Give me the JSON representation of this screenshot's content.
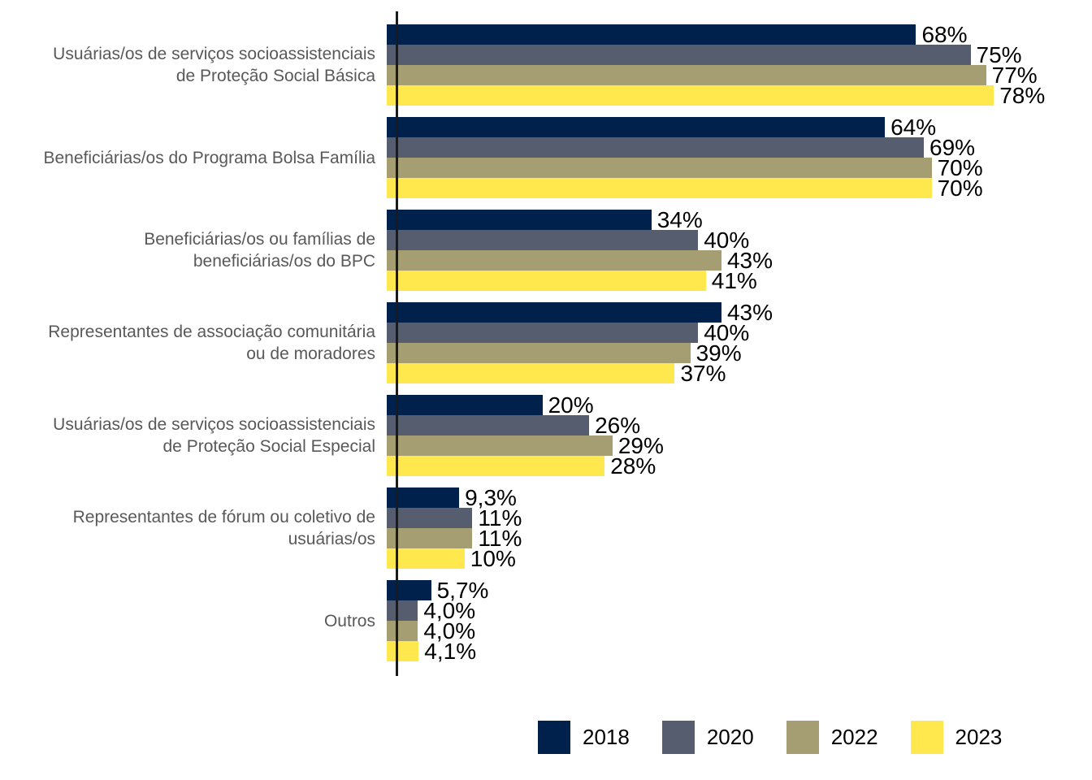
{
  "chart_data": {
    "type": "bar",
    "orientation": "horizontal",
    "unit": "%",
    "title": "",
    "xlabel": "",
    "ylabel": "",
    "xlim": [
      0,
      100
    ],
    "grid": false,
    "value_labels_shown": true,
    "legend_position": "bottom",
    "axis_color": "#1a1a1a",
    "category_label_color": "#595959",
    "value_label_color": "#000000",
    "categories": [
      "Usuárias/os de serviços socioassistenciais de Proteção Social Básica",
      "Beneficiárias/os do Programa Bolsa Família",
      "Beneficiárias/os ou famílias de beneficiárias/os do BPC",
      "Representantes de associação comunitária ou de moradores",
      "Usuárias/os de serviços socioassistenciais de Proteção Social Especial",
      "Representantes de fórum ou coletivo de usuárias/os",
      "Outros"
    ],
    "category_label_lines": [
      [
        "Usuárias/os de serviços socioassistenciais",
        "de Proteção Social Básica"
      ],
      [
        "Beneficiárias/os do Programa Bolsa Família"
      ],
      [
        "Beneficiárias/os ou famílias de",
        "beneficiárias/os do BPC"
      ],
      [
        "Representantes de associação comunitária",
        "ou de moradores"
      ],
      [
        "Usuárias/os de serviços socioassistenciais",
        "de Proteção Social Especial"
      ],
      [
        "Representantes de fórum ou coletivo de",
        "usuárias/os"
      ],
      [
        "Outros"
      ]
    ],
    "series": [
      {
        "name": "2018",
        "color": "#01214d",
        "values": [
          68,
          64,
          34,
          43,
          20,
          9.3,
          5.7
        ],
        "labels": [
          "68%",
          "64%",
          "34%",
          "43%",
          "20%",
          "9,3%",
          "5,7%"
        ]
      },
      {
        "name": "2020",
        "color": "#565d6e",
        "values": [
          75,
          69,
          40,
          40,
          26,
          11,
          4.0
        ],
        "labels": [
          "75%",
          "69%",
          "40%",
          "40%",
          "26%",
          "11%",
          "4,0%"
        ]
      },
      {
        "name": "2022",
        "color": "#a69e73",
        "values": [
          77,
          70,
          43,
          39,
          29,
          11,
          4.0
        ],
        "labels": [
          "77%",
          "70%",
          "43%",
          "39%",
          "29%",
          "11%",
          "4,0%"
        ]
      },
      {
        "name": "2023",
        "color": "#ffe84d",
        "values": [
          78,
          70,
          41,
          37,
          28,
          10,
          4.1
        ],
        "labels": [
          "78%",
          "70%",
          "41%",
          "37%",
          "28%",
          "10%",
          "4,1%"
        ]
      }
    ],
    "legend": {
      "entries": [
        {
          "label": "2018",
          "color": "#01214d"
        },
        {
          "label": "2020",
          "color": "#565d6e"
        },
        {
          "label": "2022",
          "color": "#a69e73"
        },
        {
          "label": "2023",
          "color": "#ffe84d"
        }
      ]
    }
  }
}
